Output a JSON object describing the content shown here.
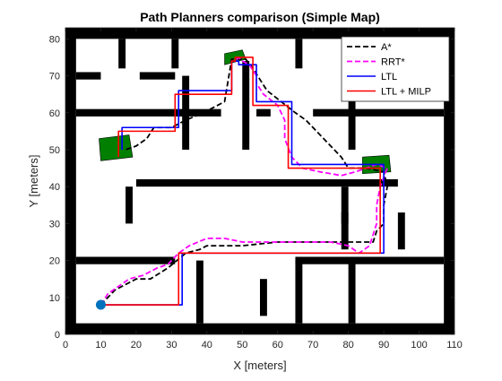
{
  "chart_data": {
    "type": "line",
    "title": "Path Planners comparison (Simple Map)",
    "xlabel": "X [meters]",
    "ylabel": "Y [meters]",
    "xlim": [
      0,
      110
    ],
    "ylim": [
      0,
      83
    ],
    "xticks": [
      0,
      10,
      20,
      30,
      40,
      50,
      60,
      70,
      80,
      90,
      100,
      110
    ],
    "yticks": [
      0,
      10,
      20,
      30,
      40,
      50,
      60,
      70,
      80
    ],
    "grid": false,
    "legend_position": "top-right",
    "colors": {
      "walls": "#000000",
      "goal_regions": "#007f00",
      "start_marker": "#0072bd",
      "astar": "#000000",
      "rrt": "#ff00ff",
      "ltl": "#0000ff",
      "ltl_milp": "#ff0000"
    },
    "walls": [
      [
        0,
        0,
        3,
        83
      ],
      [
        107,
        0,
        110,
        83
      ],
      [
        0,
        0,
        110,
        3
      ],
      [
        0,
        80,
        110,
        83
      ],
      [
        3,
        69,
        10,
        71
      ],
      [
        21,
        69,
        31,
        71
      ],
      [
        3,
        59,
        44,
        61
      ],
      [
        54,
        59,
        58,
        61
      ],
      [
        70,
        59,
        107,
        61
      ],
      [
        100,
        69,
        107,
        71
      ],
      [
        3,
        19,
        31,
        21
      ],
      [
        65,
        19,
        107,
        21
      ],
      [
        20,
        40,
        94,
        42
      ],
      [
        15,
        72,
        17,
        80
      ],
      [
        30,
        72,
        32,
        80
      ],
      [
        65,
        72,
        67,
        80
      ],
      [
        80,
        72,
        82,
        80
      ],
      [
        33,
        50,
        35,
        70
      ],
      [
        80,
        50,
        82,
        70
      ],
      [
        50,
        50,
        52,
        74
      ],
      [
        17,
        30,
        19,
        40
      ],
      [
        78,
        30,
        80,
        40
      ],
      [
        37,
        3,
        39,
        20
      ],
      [
        65,
        3,
        67,
        20
      ],
      [
        80,
        3,
        82,
        20
      ],
      [
        55,
        5,
        57,
        15
      ],
      [
        94,
        23,
        96,
        33
      ],
      [
        78,
        23,
        80,
        33
      ]
    ],
    "goal_regions": [
      {
        "corners": [
          [
            10,
            47
          ],
          [
            19,
            48
          ],
          [
            18,
            54
          ],
          [
            9.5,
            53
          ]
        ]
      },
      {
        "corners": [
          [
            45,
            73
          ],
          [
            51,
            74.5
          ],
          [
            50,
            77
          ],
          [
            45,
            76
          ]
        ]
      },
      {
        "corners": [
          [
            84,
            43.5
          ],
          [
            92,
            44
          ],
          [
            91.5,
            48.5
          ],
          [
            84,
            48
          ]
        ]
      }
    ],
    "start": {
      "x": 10,
      "y": 8
    },
    "series": [
      {
        "name": "A*",
        "style": "dashed",
        "points": [
          [
            10,
            8
          ],
          [
            14,
            12
          ],
          [
            20,
            15
          ],
          [
            24,
            15
          ],
          [
            29,
            18
          ],
          [
            34,
            22
          ],
          [
            38,
            23
          ],
          [
            40,
            24
          ],
          [
            50,
            24
          ],
          [
            60,
            25
          ],
          [
            80,
            25
          ],
          [
            87,
            25
          ],
          [
            88,
            28
          ],
          [
            90,
            30
          ],
          [
            90,
            35
          ],
          [
            91,
            40
          ],
          [
            90,
            44
          ],
          [
            85,
            45
          ],
          [
            80,
            45
          ],
          [
            78,
            48
          ],
          [
            74,
            52
          ],
          [
            71,
            55
          ],
          [
            68,
            58
          ],
          [
            65,
            60
          ],
          [
            61,
            63
          ],
          [
            57,
            66
          ],
          [
            55,
            69
          ],
          [
            53,
            72
          ],
          [
            51,
            74.5
          ],
          [
            49,
            74.5
          ],
          [
            47,
            74.5
          ],
          [
            45,
            63
          ],
          [
            39,
            60
          ],
          [
            34,
            58
          ],
          [
            30,
            56
          ],
          [
            25,
            56
          ],
          [
            23,
            53
          ],
          [
            20,
            51
          ],
          [
            17,
            50
          ]
        ]
      },
      {
        "name": "RRT*",
        "style": "dashed",
        "points": [
          [
            10,
            8
          ],
          [
            12,
            11
          ],
          [
            15,
            13
          ],
          [
            18,
            15
          ],
          [
            22,
            16
          ],
          [
            26,
            18
          ],
          [
            29,
            19
          ],
          [
            32,
            22
          ],
          [
            35,
            24
          ],
          [
            40,
            26
          ],
          [
            45,
            26
          ],
          [
            50,
            25
          ],
          [
            55,
            25
          ],
          [
            60,
            25
          ],
          [
            65,
            25
          ],
          [
            70,
            25
          ],
          [
            75,
            25
          ],
          [
            80,
            24
          ],
          [
            83,
            22
          ],
          [
            86,
            24
          ],
          [
            87,
            27
          ],
          [
            88,
            30
          ],
          [
            88,
            35
          ],
          [
            89,
            40
          ],
          [
            91,
            45
          ],
          [
            88,
            46
          ],
          [
            85,
            45
          ],
          [
            82,
            44
          ],
          [
            78,
            43
          ],
          [
            72,
            44
          ],
          [
            67,
            45
          ],
          [
            64,
            48
          ],
          [
            62,
            53
          ],
          [
            62,
            58
          ],
          [
            60,
            62
          ],
          [
            56,
            65
          ],
          [
            54,
            68
          ],
          [
            54,
            70
          ],
          [
            52,
            73
          ],
          [
            50,
            74
          ],
          [
            49,
            75
          ],
          [
            48,
            74
          ]
        ]
      },
      {
        "name": "LTL",
        "style": "solid",
        "points": [
          [
            10,
            8
          ],
          [
            33,
            8
          ],
          [
            33,
            22
          ],
          [
            90,
            22
          ],
          [
            90,
            46
          ],
          [
            64,
            46
          ],
          [
            64,
            63
          ],
          [
            54,
            63
          ],
          [
            54,
            73
          ],
          [
            49,
            73
          ],
          [
            49,
            74
          ],
          [
            47,
            74
          ],
          [
            47,
            66
          ],
          [
            32,
            66
          ],
          [
            32,
            56
          ],
          [
            16,
            56
          ],
          [
            16,
            50
          ]
        ]
      },
      {
        "name": "LTL + MILP",
        "style": "solid",
        "points": [
          [
            10,
            8
          ],
          [
            32,
            8
          ],
          [
            32,
            22
          ],
          [
            89,
            22
          ],
          [
            89,
            45
          ],
          [
            63,
            45
          ],
          [
            63,
            62
          ],
          [
            53,
            62
          ],
          [
            53,
            75
          ],
          [
            48,
            75
          ],
          [
            48,
            74
          ],
          [
            47,
            74
          ],
          [
            47,
            65
          ],
          [
            31,
            65
          ],
          [
            31,
            55
          ],
          [
            15,
            55
          ],
          [
            15,
            48
          ]
        ]
      }
    ]
  }
}
